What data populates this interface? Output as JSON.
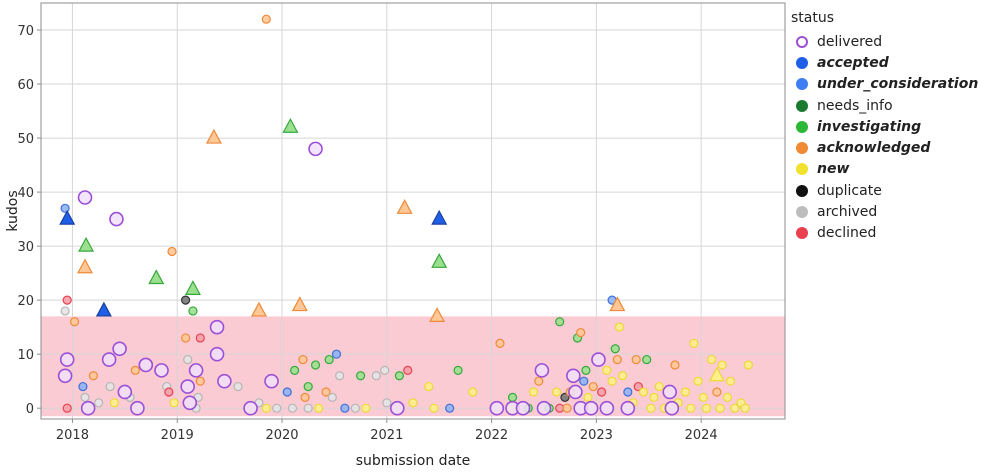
{
  "chart_data": {
    "type": "scatter",
    "xlabel": "submission date",
    "ylabel": "kudos",
    "xlim": [
      2017.7,
      2024.8
    ],
    "ylim": [
      -2,
      75
    ],
    "x_ticks": [
      2018,
      2019,
      2020,
      2021,
      2022,
      2023,
      2024
    ],
    "y_ticks": [
      0,
      10,
      20,
      30,
      40,
      50,
      60,
      70
    ],
    "grid": true,
    "shaded_band": {
      "y_from": 0,
      "y_to": 17,
      "color": "#fbc8d2"
    },
    "legend": {
      "title": "status",
      "placement": "right",
      "entries": [
        {
          "label": "delivered",
          "color": "#9a4fd6",
          "hollow": true,
          "emphasis": false
        },
        {
          "label": "accepted",
          "color": "#1f5fe8",
          "hollow": false,
          "emphasis": true
        },
        {
          "label": "under_consideration",
          "color": "#3f7ef2",
          "hollow": false,
          "emphasis": true
        },
        {
          "label": "needs_info",
          "color": "#1b7a30",
          "hollow": false,
          "emphasis": false
        },
        {
          "label": "investigating",
          "color": "#2cb836",
          "hollow": false,
          "emphasis": true
        },
        {
          "label": "acknowledged",
          "color": "#f08a34",
          "hollow": false,
          "emphasis": true
        },
        {
          "label": "new",
          "color": "#f1e22e",
          "hollow": false,
          "emphasis": true
        },
        {
          "label": "duplicate",
          "color": "#111111",
          "hollow": false,
          "emphasis": false
        },
        {
          "label": "archived",
          "color": "#bdbdbd",
          "hollow": false,
          "emphasis": false
        },
        {
          "label": "declined",
          "color": "#e8404f",
          "hollow": false,
          "emphasis": false
        }
      ]
    },
    "status_styles": {
      "delivered": {
        "fill": "#f1e0fa",
        "stroke": "#9a4fd6"
      },
      "accepted": {
        "fill": "#1f5fe8",
        "stroke": "#1a3f9e"
      },
      "under_consideration": {
        "fill": "#8fb3f5",
        "stroke": "#3f6fd8"
      },
      "needs_info": {
        "fill": "#2b9a45",
        "stroke": "#1b5e2a"
      },
      "investigating": {
        "fill": "#9be08f",
        "stroke": "#36a83c"
      },
      "acknowledged": {
        "fill": "#ffc896",
        "stroke": "#ee8a3a"
      },
      "new": {
        "fill": "#fbf08a",
        "stroke": "#ecd83a"
      },
      "duplicate": {
        "fill": "#777777",
        "stroke": "#333333"
      },
      "archived": {
        "fill": "#e4e4e4",
        "stroke": "#b5b5b5"
      },
      "declined": {
        "fill": "#f4a0a8",
        "stroke": "#e8404f"
      }
    },
    "triangles": [
      {
        "x": 2017.95,
        "y": 35,
        "status": "accepted"
      },
      {
        "x": 2018.13,
        "y": 30,
        "status": "investigating"
      },
      {
        "x": 2018.12,
        "y": 26,
        "status": "acknowledged"
      },
      {
        "x": 2018.3,
        "y": 18,
        "status": "accepted"
      },
      {
        "x": 2018.8,
        "y": 24,
        "status": "investigating"
      },
      {
        "x": 2019.15,
        "y": 22,
        "status": "investigating"
      },
      {
        "x": 2019.35,
        "y": 50,
        "status": "acknowledged"
      },
      {
        "x": 2019.78,
        "y": 18,
        "status": "acknowledged"
      },
      {
        "x": 2020.08,
        "y": 52,
        "status": "investigating"
      },
      {
        "x": 2020.17,
        "y": 19,
        "status": "acknowledged"
      },
      {
        "x": 2021.17,
        "y": 37,
        "status": "acknowledged"
      },
      {
        "x": 2021.5,
        "y": 35,
        "status": "accepted"
      },
      {
        "x": 2021.5,
        "y": 27,
        "status": "investigating"
      },
      {
        "x": 2021.48,
        "y": 17,
        "status": "acknowledged"
      },
      {
        "x": 2023.2,
        "y": 19,
        "status": "acknowledged"
      },
      {
        "x": 2024.15,
        "y": 6,
        "status": "new"
      }
    ],
    "large_circles": [
      {
        "x": 2017.95,
        "y": 9,
        "status": "delivered"
      },
      {
        "x": 2017.93,
        "y": 6,
        "status": "delivered"
      },
      {
        "x": 2018.12,
        "y": 39,
        "status": "delivered"
      },
      {
        "x": 2018.15,
        "y": 0,
        "status": "delivered"
      },
      {
        "x": 2018.42,
        "y": 35,
        "status": "delivered"
      },
      {
        "x": 2018.45,
        "y": 11,
        "status": "delivered"
      },
      {
        "x": 2018.35,
        "y": 9,
        "status": "delivered"
      },
      {
        "x": 2018.5,
        "y": 3,
        "status": "delivered"
      },
      {
        "x": 2018.62,
        "y": 0,
        "status": "delivered"
      },
      {
        "x": 2018.7,
        "y": 8,
        "status": "delivered"
      },
      {
        "x": 2018.85,
        "y": 7,
        "status": "delivered"
      },
      {
        "x": 2019.1,
        "y": 4,
        "status": "delivered"
      },
      {
        "x": 2019.12,
        "y": 1,
        "status": "delivered"
      },
      {
        "x": 2019.18,
        "y": 7,
        "status": "delivered"
      },
      {
        "x": 2019.38,
        "y": 15,
        "status": "delivered"
      },
      {
        "x": 2019.38,
        "y": 10,
        "status": "delivered"
      },
      {
        "x": 2019.45,
        "y": 5,
        "status": "delivered"
      },
      {
        "x": 2019.7,
        "y": 0,
        "status": "delivered"
      },
      {
        "x": 2019.9,
        "y": 5,
        "status": "delivered"
      },
      {
        "x": 2020.32,
        "y": 48,
        "status": "delivered"
      },
      {
        "x": 2021.1,
        "y": 0,
        "status": "delivered"
      },
      {
        "x": 2022.05,
        "y": 0,
        "status": "delivered"
      },
      {
        "x": 2022.2,
        "y": 0,
        "status": "delivered"
      },
      {
        "x": 2022.3,
        "y": 0,
        "status": "delivered"
      },
      {
        "x": 2022.48,
        "y": 7,
        "status": "delivered"
      },
      {
        "x": 2022.5,
        "y": 0,
        "status": "delivered"
      },
      {
        "x": 2022.78,
        "y": 6,
        "status": "delivered"
      },
      {
        "x": 2022.8,
        "y": 3,
        "status": "delivered"
      },
      {
        "x": 2022.85,
        "y": 0,
        "status": "delivered"
      },
      {
        "x": 2023.02,
        "y": 9,
        "status": "delivered"
      },
      {
        "x": 2022.95,
        "y": 0,
        "status": "delivered"
      },
      {
        "x": 2023.1,
        "y": 0,
        "status": "delivered"
      },
      {
        "x": 2023.3,
        "y": 0,
        "status": "delivered"
      },
      {
        "x": 2023.7,
        "y": 3,
        "status": "delivered"
      },
      {
        "x": 2023.72,
        "y": 0,
        "status": "delivered"
      }
    ],
    "small_circles": [
      {
        "x": 2017.93,
        "y": 37,
        "status": "under_consideration"
      },
      {
        "x": 2017.95,
        "y": 20,
        "status": "declined"
      },
      {
        "x": 2017.93,
        "y": 18,
        "status": "archived"
      },
      {
        "x": 2018.02,
        "y": 16,
        "status": "acknowledged"
      },
      {
        "x": 2017.95,
        "y": 0,
        "status": "declined"
      },
      {
        "x": 2018.1,
        "y": 4,
        "status": "under_consideration"
      },
      {
        "x": 2018.12,
        "y": 2,
        "status": "archived"
      },
      {
        "x": 2018.2,
        "y": 6,
        "status": "acknowledged"
      },
      {
        "x": 2018.25,
        "y": 1,
        "status": "archived"
      },
      {
        "x": 2018.36,
        "y": 4,
        "status": "archived"
      },
      {
        "x": 2018.4,
        "y": 1,
        "status": "new"
      },
      {
        "x": 2018.55,
        "y": 2,
        "status": "archived"
      },
      {
        "x": 2018.6,
        "y": 7,
        "status": "acknowledged"
      },
      {
        "x": 2018.9,
        "y": 4,
        "status": "archived"
      },
      {
        "x": 2018.92,
        "y": 3,
        "status": "declined"
      },
      {
        "x": 2018.95,
        "y": 29,
        "status": "acknowledged"
      },
      {
        "x": 2018.97,
        "y": 1,
        "status": "new"
      },
      {
        "x": 2019.08,
        "y": 20,
        "status": "duplicate"
      },
      {
        "x": 2019.15,
        "y": 18,
        "status": "investigating"
      },
      {
        "x": 2019.08,
        "y": 13,
        "status": "acknowledged"
      },
      {
        "x": 2019.22,
        "y": 13,
        "status": "declined"
      },
      {
        "x": 2019.1,
        "y": 9,
        "status": "archived"
      },
      {
        "x": 2019.22,
        "y": 5,
        "status": "acknowledged"
      },
      {
        "x": 2019.2,
        "y": 2,
        "status": "archived"
      },
      {
        "x": 2019.18,
        "y": 0,
        "status": "archived"
      },
      {
        "x": 2019.58,
        "y": 4,
        "status": "archived"
      },
      {
        "x": 2019.78,
        "y": 1,
        "status": "archived"
      },
      {
        "x": 2019.85,
        "y": 72,
        "status": "acknowledged"
      },
      {
        "x": 2019.85,
        "y": 0,
        "status": "new"
      },
      {
        "x": 2019.95,
        "y": 0,
        "status": "archived"
      },
      {
        "x": 2020.05,
        "y": 3,
        "status": "under_consideration"
      },
      {
        "x": 2020.1,
        "y": 0,
        "status": "archived"
      },
      {
        "x": 2020.12,
        "y": 7,
        "status": "investigating"
      },
      {
        "x": 2020.2,
        "y": 9,
        "status": "acknowledged"
      },
      {
        "x": 2020.22,
        "y": 2,
        "status": "acknowledged"
      },
      {
        "x": 2020.25,
        "y": 4,
        "status": "investigating"
      },
      {
        "x": 2020.25,
        "y": 0,
        "status": "archived"
      },
      {
        "x": 2020.32,
        "y": 8,
        "status": "investigating"
      },
      {
        "x": 2020.35,
        "y": 0,
        "status": "new"
      },
      {
        "x": 2020.42,
        "y": 3,
        "status": "acknowledged"
      },
      {
        "x": 2020.45,
        "y": 9,
        "status": "investigating"
      },
      {
        "x": 2020.48,
        "y": 2,
        "status": "archived"
      },
      {
        "x": 2020.52,
        "y": 10,
        "status": "under_consideration"
      },
      {
        "x": 2020.55,
        "y": 6,
        "status": "archived"
      },
      {
        "x": 2020.6,
        "y": 0,
        "status": "under_consideration"
      },
      {
        "x": 2020.7,
        "y": 0,
        "status": "archived"
      },
      {
        "x": 2020.75,
        "y": 6,
        "status": "investigating"
      },
      {
        "x": 2020.8,
        "y": 0,
        "status": "new"
      },
      {
        "x": 2020.9,
        "y": 6,
        "status": "archived"
      },
      {
        "x": 2020.98,
        "y": 7,
        "status": "archived"
      },
      {
        "x": 2021.0,
        "y": 1,
        "status": "archived"
      },
      {
        "x": 2021.12,
        "y": 6,
        "status": "investigating"
      },
      {
        "x": 2021.2,
        "y": 7,
        "status": "declined"
      },
      {
        "x": 2021.25,
        "y": 1,
        "status": "new"
      },
      {
        "x": 2021.4,
        "y": 4,
        "status": "new"
      },
      {
        "x": 2021.45,
        "y": 0,
        "status": "new"
      },
      {
        "x": 2021.6,
        "y": 0,
        "status": "under_consideration"
      },
      {
        "x": 2021.68,
        "y": 7,
        "status": "investigating"
      },
      {
        "x": 2021.82,
        "y": 3,
        "status": "new"
      },
      {
        "x": 2022.08,
        "y": 12,
        "status": "acknowledged"
      },
      {
        "x": 2022.18,
        "y": 0,
        "status": "new"
      },
      {
        "x": 2022.2,
        "y": 2,
        "status": "investigating"
      },
      {
        "x": 2022.35,
        "y": 0,
        "status": "investigating"
      },
      {
        "x": 2022.4,
        "y": 3,
        "status": "new"
      },
      {
        "x": 2022.45,
        "y": 5,
        "status": "acknowledged"
      },
      {
        "x": 2022.55,
        "y": 0,
        "status": "investigating"
      },
      {
        "x": 2022.62,
        "y": 3,
        "status": "new"
      },
      {
        "x": 2022.65,
        "y": 16,
        "status": "investigating"
      },
      {
        "x": 2022.65,
        "y": 0,
        "status": "declined"
      },
      {
        "x": 2022.7,
        "y": 2,
        "status": "duplicate"
      },
      {
        "x": 2022.72,
        "y": 0,
        "status": "acknowledged"
      },
      {
        "x": 2022.75,
        "y": 3,
        "status": "acknowledged"
      },
      {
        "x": 2022.82,
        "y": 13,
        "status": "investigating"
      },
      {
        "x": 2022.85,
        "y": 14,
        "status": "acknowledged"
      },
      {
        "x": 2022.88,
        "y": 5,
        "status": "under_consideration"
      },
      {
        "x": 2022.9,
        "y": 7,
        "status": "investigating"
      },
      {
        "x": 2022.92,
        "y": 2,
        "status": "new"
      },
      {
        "x": 2022.97,
        "y": 4,
        "status": "acknowledged"
      },
      {
        "x": 2023.05,
        "y": 3,
        "status": "declined"
      },
      {
        "x": 2023.1,
        "y": 7,
        "status": "new"
      },
      {
        "x": 2023.15,
        "y": 5,
        "status": "new"
      },
      {
        "x": 2023.15,
        "y": 20,
        "status": "under_consideration"
      },
      {
        "x": 2023.18,
        "y": 11,
        "status": "investigating"
      },
      {
        "x": 2023.2,
        "y": 9,
        "status": "acknowledged"
      },
      {
        "x": 2023.22,
        "y": 15,
        "status": "new"
      },
      {
        "x": 2023.25,
        "y": 6,
        "status": "new"
      },
      {
        "x": 2023.3,
        "y": 3,
        "status": "under_consideration"
      },
      {
        "x": 2023.35,
        "y": 1,
        "status": "new"
      },
      {
        "x": 2023.38,
        "y": 9,
        "status": "acknowledged"
      },
      {
        "x": 2023.4,
        "y": 4,
        "status": "declined"
      },
      {
        "x": 2023.45,
        "y": 3,
        "status": "new"
      },
      {
        "x": 2023.48,
        "y": 9,
        "status": "investigating"
      },
      {
        "x": 2023.52,
        "y": 0,
        "status": "new"
      },
      {
        "x": 2023.55,
        "y": 2,
        "status": "new"
      },
      {
        "x": 2023.6,
        "y": 4,
        "status": "new"
      },
      {
        "x": 2023.65,
        "y": 0,
        "status": "new"
      },
      {
        "x": 2023.75,
        "y": 8,
        "status": "acknowledged"
      },
      {
        "x": 2023.78,
        "y": 1,
        "status": "new"
      },
      {
        "x": 2023.85,
        "y": 3,
        "status": "new"
      },
      {
        "x": 2023.9,
        "y": 0,
        "status": "new"
      },
      {
        "x": 2023.93,
        "y": 12,
        "status": "new"
      },
      {
        "x": 2023.97,
        "y": 5,
        "status": "new"
      },
      {
        "x": 2024.02,
        "y": 2,
        "status": "new"
      },
      {
        "x": 2024.05,
        "y": 0,
        "status": "new"
      },
      {
        "x": 2024.1,
        "y": 9,
        "status": "new"
      },
      {
        "x": 2024.15,
        "y": 3,
        "status": "acknowledged"
      },
      {
        "x": 2024.18,
        "y": 0,
        "status": "new"
      },
      {
        "x": 2024.2,
        "y": 8,
        "status": "new"
      },
      {
        "x": 2024.25,
        "y": 2,
        "status": "new"
      },
      {
        "x": 2024.28,
        "y": 5,
        "status": "new"
      },
      {
        "x": 2024.32,
        "y": 0,
        "status": "new"
      },
      {
        "x": 2024.38,
        "y": 1,
        "status": "new"
      },
      {
        "x": 2024.45,
        "y": 8,
        "status": "new"
      },
      {
        "x": 2024.42,
        "y": 0,
        "status": "new"
      }
    ]
  }
}
